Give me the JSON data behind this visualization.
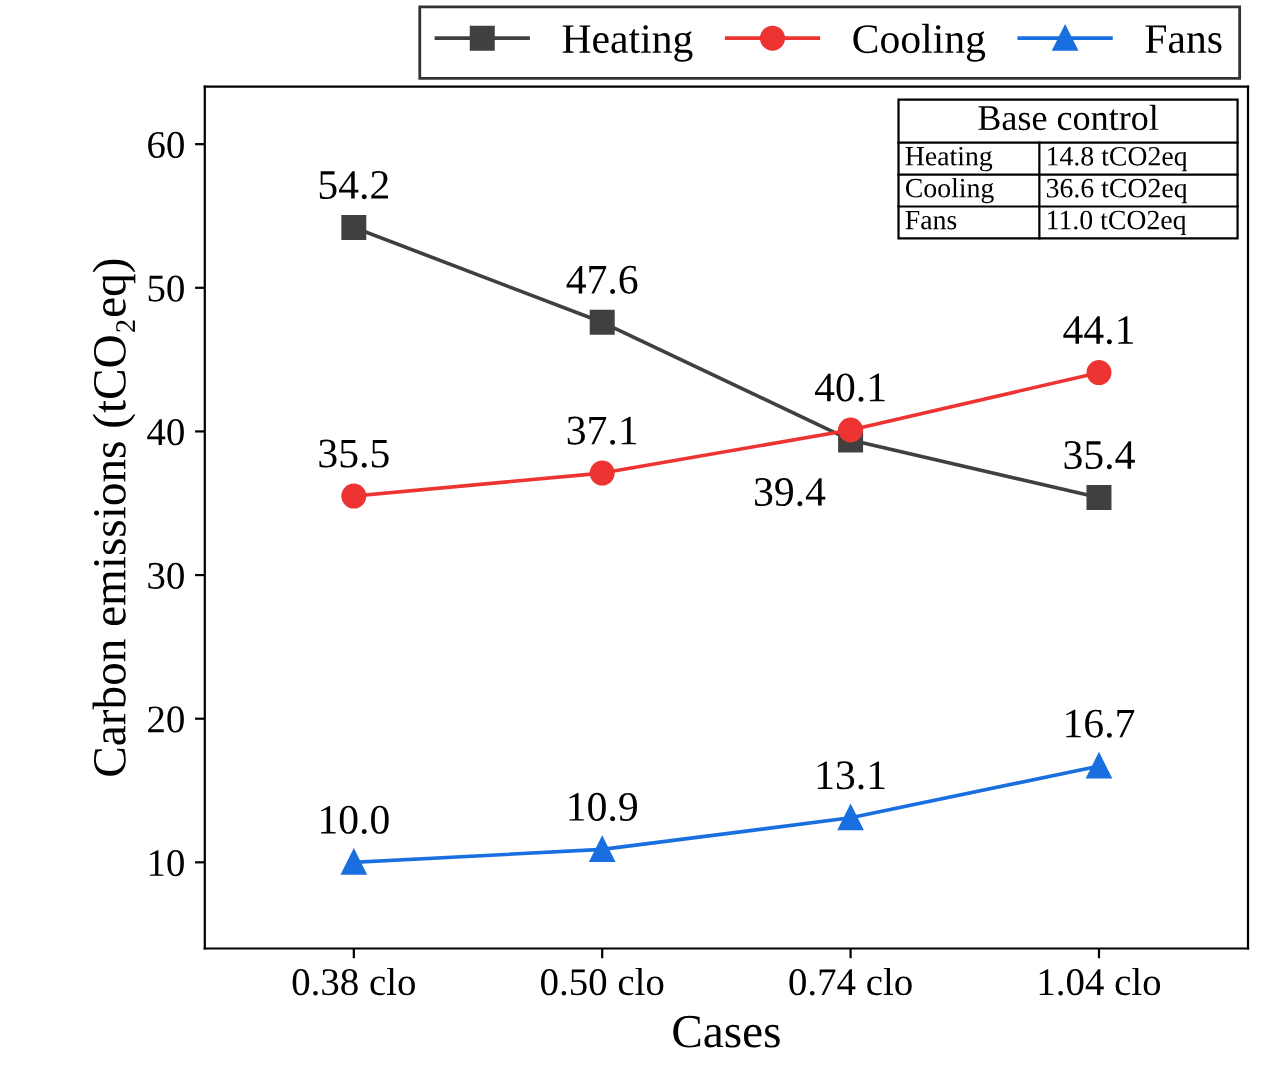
{
  "chart_data": {
    "type": "line",
    "xlabel": "Cases",
    "ylabel": "Carbon emissions (tCO₂eq)",
    "categories": [
      "0.38 clo",
      "0.50 clo",
      "0.74 clo",
      "1.04 clo"
    ],
    "ylim": [
      4,
      64
    ],
    "yticks": [
      10,
      20,
      30,
      40,
      50,
      60
    ],
    "grid": false,
    "legend": "top right",
    "series": [
      {
        "name": "Heating",
        "color": "#404040",
        "marker": "square",
        "values": [
          54.2,
          47.6,
          39.4,
          35.4
        ],
        "value_labels": [
          "54.2",
          "47.6",
          "39.4",
          "35.4"
        ]
      },
      {
        "name": "Cooling",
        "color": "#ee3333",
        "marker": "circle",
        "values": [
          35.5,
          37.1,
          40.1,
          44.1
        ],
        "value_labels": [
          "35.5",
          "37.1",
          "40.1",
          "44.1"
        ]
      },
      {
        "name": "Fans",
        "color": "#1a6fe0",
        "marker": "triangle",
        "values": [
          10.0,
          10.9,
          13.1,
          16.7
        ],
        "value_labels": [
          "10.0",
          "10.9",
          "13.1",
          "16.7"
        ]
      }
    ],
    "annotations": [
      "Base control",
      "Heating",
      "14.8 tCO2eq",
      "Cooling",
      "36.6 tCO2eq",
      "Fans",
      "11.0 tCO2eq"
    ]
  }
}
